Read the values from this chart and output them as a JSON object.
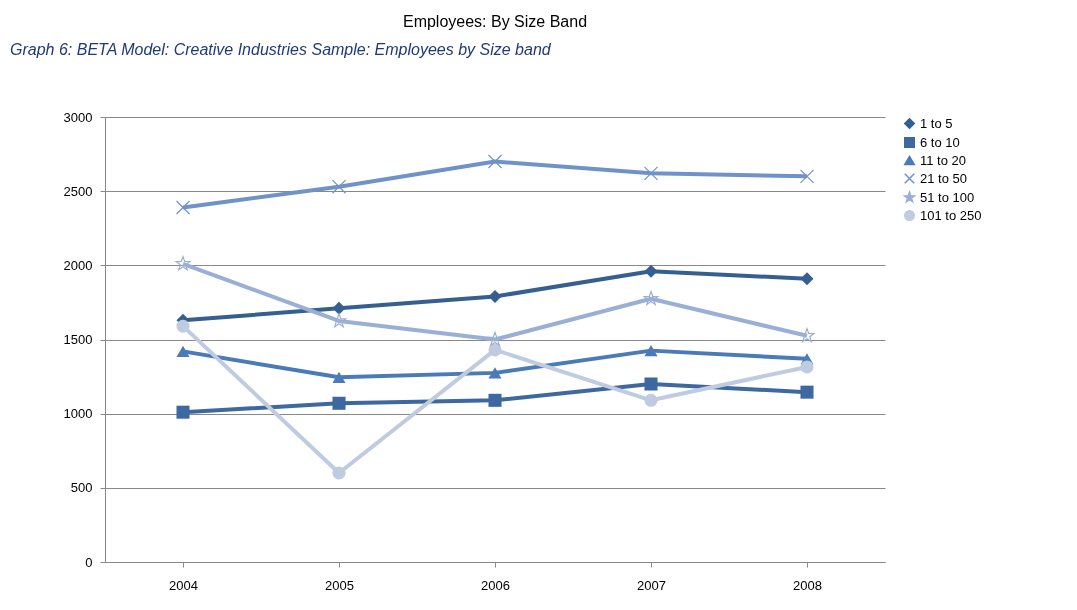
{
  "chart_data": {
    "type": "line",
    "title": "Employees: By Size Band",
    "annotations": [
      "Graph 6: BETA Model: Creative Industries Sample: Employees by Size band"
    ],
    "categories": [
      "2004",
      "2005",
      "2006",
      "2007",
      "2008"
    ],
    "ylim": [
      0,
      3000
    ],
    "yticks": [
      0,
      500,
      1000,
      1500,
      2000,
      2500,
      3000
    ],
    "grid": "y",
    "legend": "right",
    "series": [
      {
        "name": "1 to 5",
        "color": "#355f91",
        "marker": "diamond",
        "values": [
          1630,
          1710,
          1790,
          1960,
          1910
        ]
      },
      {
        "name": "6 to 10",
        "color": "#3d68a0",
        "marker": "square",
        "values": [
          1010,
          1070,
          1090,
          1200,
          1145
        ]
      },
      {
        "name": "11 to 20",
        "color": "#4a7bb8",
        "marker": "triangle",
        "values": [
          1420,
          1245,
          1275,
          1425,
          1370
        ]
      },
      {
        "name": "21 to 50",
        "color": "#6f93c8",
        "marker": "cross",
        "values": [
          2390,
          2530,
          2700,
          2620,
          2600
        ]
      },
      {
        "name": "51 to 100",
        "color": "#9aafd6",
        "marker": "star",
        "values": [
          2010,
          1625,
          1500,
          1775,
          1525
        ]
      },
      {
        "name": "101 to 250",
        "color": "#bfcbe0",
        "marker": "circle",
        "values": [
          1590,
          600,
          1430,
          1090,
          1315
        ]
      }
    ]
  }
}
